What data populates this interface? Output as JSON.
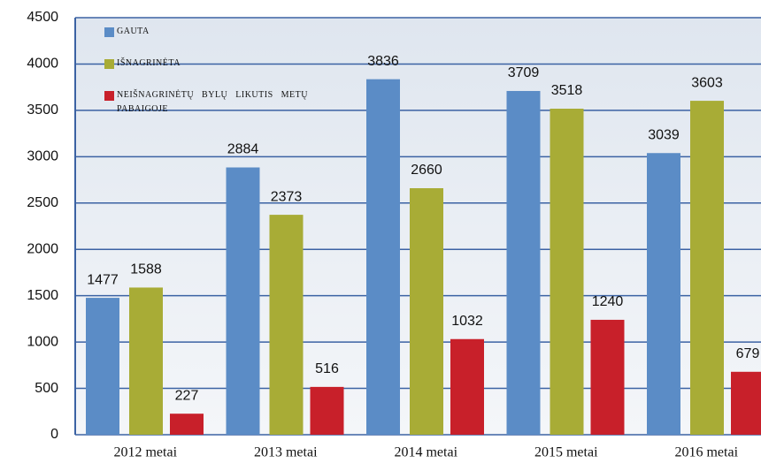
{
  "chart_data": {
    "type": "bar",
    "categories": [
      "2012 metai",
      "2013 metai",
      "2014 metai",
      "2015 metai",
      "2016 metai"
    ],
    "series": [
      {
        "name": "GAUTA",
        "color": "#5b8cc6",
        "values": [
          1477,
          2884,
          3836,
          3709,
          3039
        ]
      },
      {
        "name": "IŠNAGRINĖTA",
        "color": "#a8ac36",
        "values": [
          1588,
          2373,
          2660,
          3518,
          3603
        ]
      },
      {
        "name": "NEIŠNAGRINĖTŲ BYLŲ LIKUTIS METŲ PABAIGOJE",
        "color": "#c8202a",
        "values": [
          227,
          516,
          1032,
          1240,
          679
        ]
      }
    ],
    "ylim": [
      0,
      4500
    ],
    "yticks": [
      0,
      500,
      1000,
      1500,
      2000,
      2500,
      3000,
      3500,
      4000,
      4500
    ],
    "grid": true,
    "legend": "top-left"
  }
}
